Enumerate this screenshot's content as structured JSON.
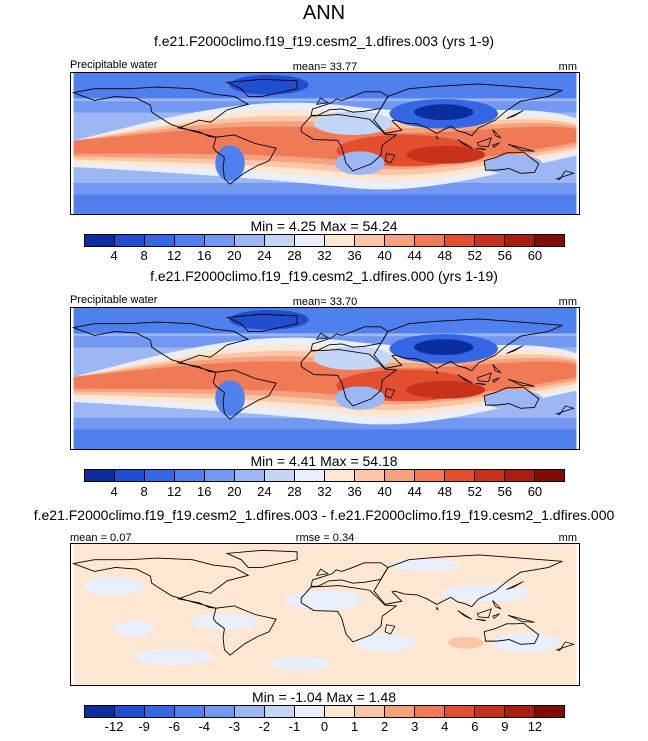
{
  "figure": {
    "title": "ANN",
    "colors": {
      "abs_palette": [
        "#0b2e9e",
        "#1f4fd0",
        "#3567e4",
        "#4f80ee",
        "#7398f2",
        "#9db6f4",
        "#c4d6f6",
        "#e9f0fb",
        "#fde6d2",
        "#fbc6a6",
        "#f7a27e",
        "#ef7a55",
        "#e24e2e",
        "#c9321a",
        "#a81e10",
        "#820b06"
      ],
      "diff_palette": [
        "#0b2e9e",
        "#1f4fd0",
        "#3567e4",
        "#4f80ee",
        "#7398f2",
        "#9db6f4",
        "#c4d6f6",
        "#e9f0fb",
        "#fde6d2",
        "#fbc6a6",
        "#f7a27e",
        "#ef7a55",
        "#e24e2e",
        "#c9321a",
        "#a81e10",
        "#820b06"
      ],
      "land_outline": "#000000"
    }
  },
  "panels": [
    {
      "title": "f.e21.F2000climo.f19_f19.cesm2_1.dfires.003 (yrs 1-9)",
      "left_label": "Precipitable water",
      "center_label": "mean=  33.77",
      "right_label": "mm",
      "minmax_label": "Min =   4.25 Max =  54.24",
      "colorbar_ticks": [
        "4",
        "8",
        "12",
        "16",
        "20",
        "24",
        "28",
        "32",
        "36",
        "40",
        "44",
        "48",
        "52",
        "56",
        "60"
      ]
    },
    {
      "title": "f.e21.F2000climo.f19_f19.cesm2_1.dfires.000 (yrs 1-19)",
      "left_label": "Precipitable water",
      "center_label": "mean=  33.70",
      "right_label": "mm",
      "minmax_label": "Min =   4.41 Max =  54.18",
      "colorbar_ticks": [
        "4",
        "8",
        "12",
        "16",
        "20",
        "24",
        "28",
        "32",
        "36",
        "40",
        "44",
        "48",
        "52",
        "56",
        "60"
      ]
    },
    {
      "title": "f.e21.F2000climo.f19_f19.cesm2_1.dfires.003 - f.e21.F2000climo.f19_f19.cesm2_1.dfires.000",
      "left_label": "mean =   0.07",
      "center_label": "rmse =   0.34",
      "right_label": "mm",
      "minmax_label": "Min =  -1.04 Max =   1.48",
      "colorbar_ticks": [
        "-12",
        "-9",
        "-6",
        "-4",
        "-3",
        "-2",
        "-1",
        "0",
        "1",
        "2",
        "3",
        "4",
        "6",
        "9",
        "12"
      ]
    }
  ],
  "chart_data": [
    {
      "type": "heatmap",
      "title": "f.e21.F2000climo.f19_f19.cesm2_1.dfires.003 (yrs 1-9)",
      "variable": "Precipitable water",
      "units": "mm",
      "mean": 33.77,
      "min": 4.25,
      "max": 54.24,
      "contour_levels": [
        4,
        8,
        12,
        16,
        20,
        24,
        28,
        32,
        36,
        40,
        44,
        48,
        52,
        56,
        60
      ],
      "grid": false,
      "projection": "global lat-lon"
    },
    {
      "type": "heatmap",
      "title": "f.e21.F2000climo.f19_f19.cesm2_1.dfires.000 (yrs 1-19)",
      "variable": "Precipitable water",
      "units": "mm",
      "mean": 33.7,
      "min": 4.41,
      "max": 54.18,
      "contour_levels": [
        4,
        8,
        12,
        16,
        20,
        24,
        28,
        32,
        36,
        40,
        44,
        48,
        52,
        56,
        60
      ],
      "grid": false,
      "projection": "global lat-lon"
    },
    {
      "type": "heatmap",
      "title": "f.e21.F2000climo.f19_f19.cesm2_1.dfires.003 - f.e21.F2000climo.f19_f19.cesm2_1.dfires.000",
      "units": "mm",
      "mean": 0.07,
      "rmse": 0.34,
      "min": -1.04,
      "max": 1.48,
      "contour_levels": [
        -12,
        -9,
        -6,
        -4,
        -3,
        -2,
        -1,
        0,
        1,
        2,
        3,
        4,
        6,
        9,
        12
      ],
      "grid": false,
      "projection": "global lat-lon"
    }
  ]
}
